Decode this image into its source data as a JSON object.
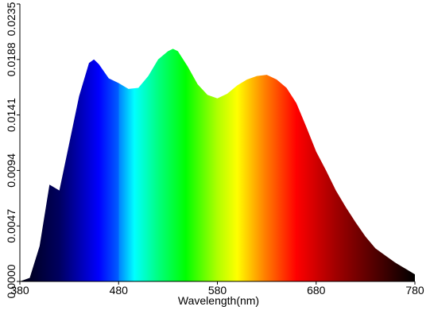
{
  "chart_data": {
    "type": "area",
    "x_label": "Wavelength(nm)",
    "x": [
      380,
      390,
      400,
      410,
      420,
      430,
      440,
      450,
      455,
      460,
      470,
      480,
      490,
      500,
      510,
      520,
      530,
      535,
      540,
      550,
      560,
      570,
      580,
      590,
      600,
      610,
      620,
      630,
      640,
      650,
      660,
      670,
      680,
      690,
      700,
      710,
      720,
      730,
      740,
      750,
      760,
      770,
      780
    ],
    "values": [
      0,
      0.0003,
      0.003,
      0.0082,
      0.0077,
      0.0117,
      0.0157,
      0.0185,
      0.0188,
      0.0184,
      0.0172,
      0.0168,
      0.0163,
      0.0164,
      0.0174,
      0.0188,
      0.0195,
      0.0197,
      0.0195,
      0.0182,
      0.0167,
      0.0158,
      0.0155,
      0.0159,
      0.0166,
      0.0171,
      0.0174,
      0.0175,
      0.0171,
      0.0164,
      0.0151,
      0.0131,
      0.011,
      0.0094,
      0.0077,
      0.0063,
      0.005,
      0.0038,
      0.0028,
      0.0022,
      0.0016,
      0.0011,
      0.0006
    ],
    "xlim": [
      380,
      780
    ],
    "xticks": [
      380,
      480,
      580,
      680,
      780
    ],
    "ylim": [
      0,
      0.0235
    ],
    "yticks": [
      {
        "value": 0,
        "label": "0.0000"
      },
      0.0047,
      0.0094,
      0.0141,
      0.0188,
      0.0235
    ]
  }
}
